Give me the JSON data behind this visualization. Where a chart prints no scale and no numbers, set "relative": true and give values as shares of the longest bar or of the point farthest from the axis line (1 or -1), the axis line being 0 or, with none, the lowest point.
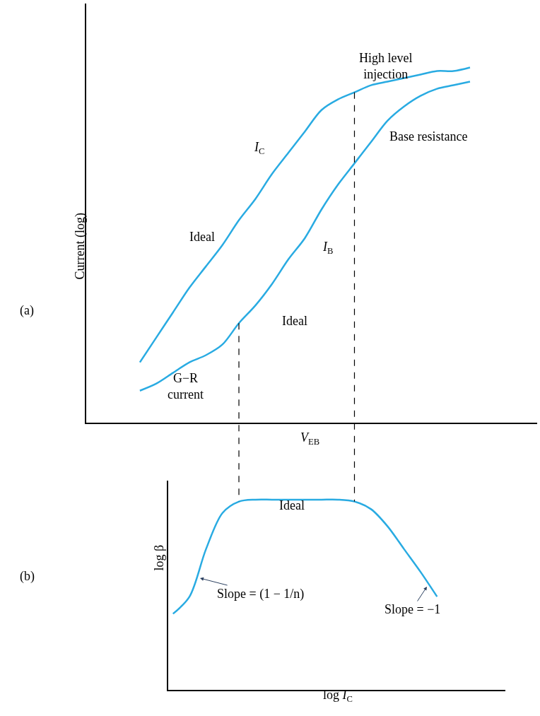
{
  "chart_data": [
    {
      "type": "line",
      "relative": true,
      "xlabel": "V$_{EB}$",
      "ylabel": "Current (log)",
      "legend": false,
      "marker": "none",
      "line_style": "solid",
      "categories": [
        null,
        null,
        null,
        null,
        null,
        null,
        null,
        null,
        null,
        null,
        null,
        null,
        null,
        null,
        null,
        null,
        null,
        null,
        null,
        null,
        null
      ],
      "series": [
        {
          "name": "I$_{C}$",
          "color": "#29abe2",
          "values": [
            0.17,
            0.24,
            0.31,
            0.38,
            0.44,
            0.5,
            0.57,
            0.63,
            0.7,
            0.76,
            0.82,
            0.88,
            0.91,
            0.93,
            0.95,
            0.96,
            0.97,
            0.98,
            0.99,
            0.99,
            1.0
          ]
        },
        {
          "name": "I$_{B}$",
          "color": "#29abe2",
          "values": [
            0.09,
            0.11,
            0.14,
            0.17,
            0.19,
            0.22,
            0.28,
            0.33,
            0.39,
            0.46,
            0.52,
            0.6,
            0.67,
            0.73,
            0.79,
            0.85,
            0.89,
            0.92,
            0.94,
            0.95,
            0.96
          ]
        }
      ],
      "annotations": [
        "High level\ninjection",
        "Base resistance",
        "Ideal",
        "Ideal",
        "G−R\ncurrent",
        "(a)"
      ]
    },
    {
      "type": "line",
      "relative": true,
      "xlabel": "log I$_{C}$",
      "ylabel": "log β",
      "legend": false,
      "marker": "none",
      "line_style": "solid",
      "categories": [
        null,
        null,
        null,
        null,
        null,
        null,
        null,
        null,
        null,
        null,
        null,
        null,
        null,
        null,
        null,
        null,
        null,
        null,
        null,
        null,
        null
      ],
      "series": [
        {
          "color": "#29abe2",
          "values": [
            null,
            null,
            0.4,
            0.49,
            0.74,
            0.93,
            0.99,
            1.0,
            1.0,
            1.0,
            1.0,
            1.0,
            1.0,
            0.99,
            0.95,
            0.86,
            0.74,
            0.62,
            0.49,
            null,
            null
          ]
        }
      ],
      "annotations": [
        "Ideal",
        "Slope = (1 − 1/n)",
        "Slope = −1",
        "(b)"
      ]
    }
  ]
}
